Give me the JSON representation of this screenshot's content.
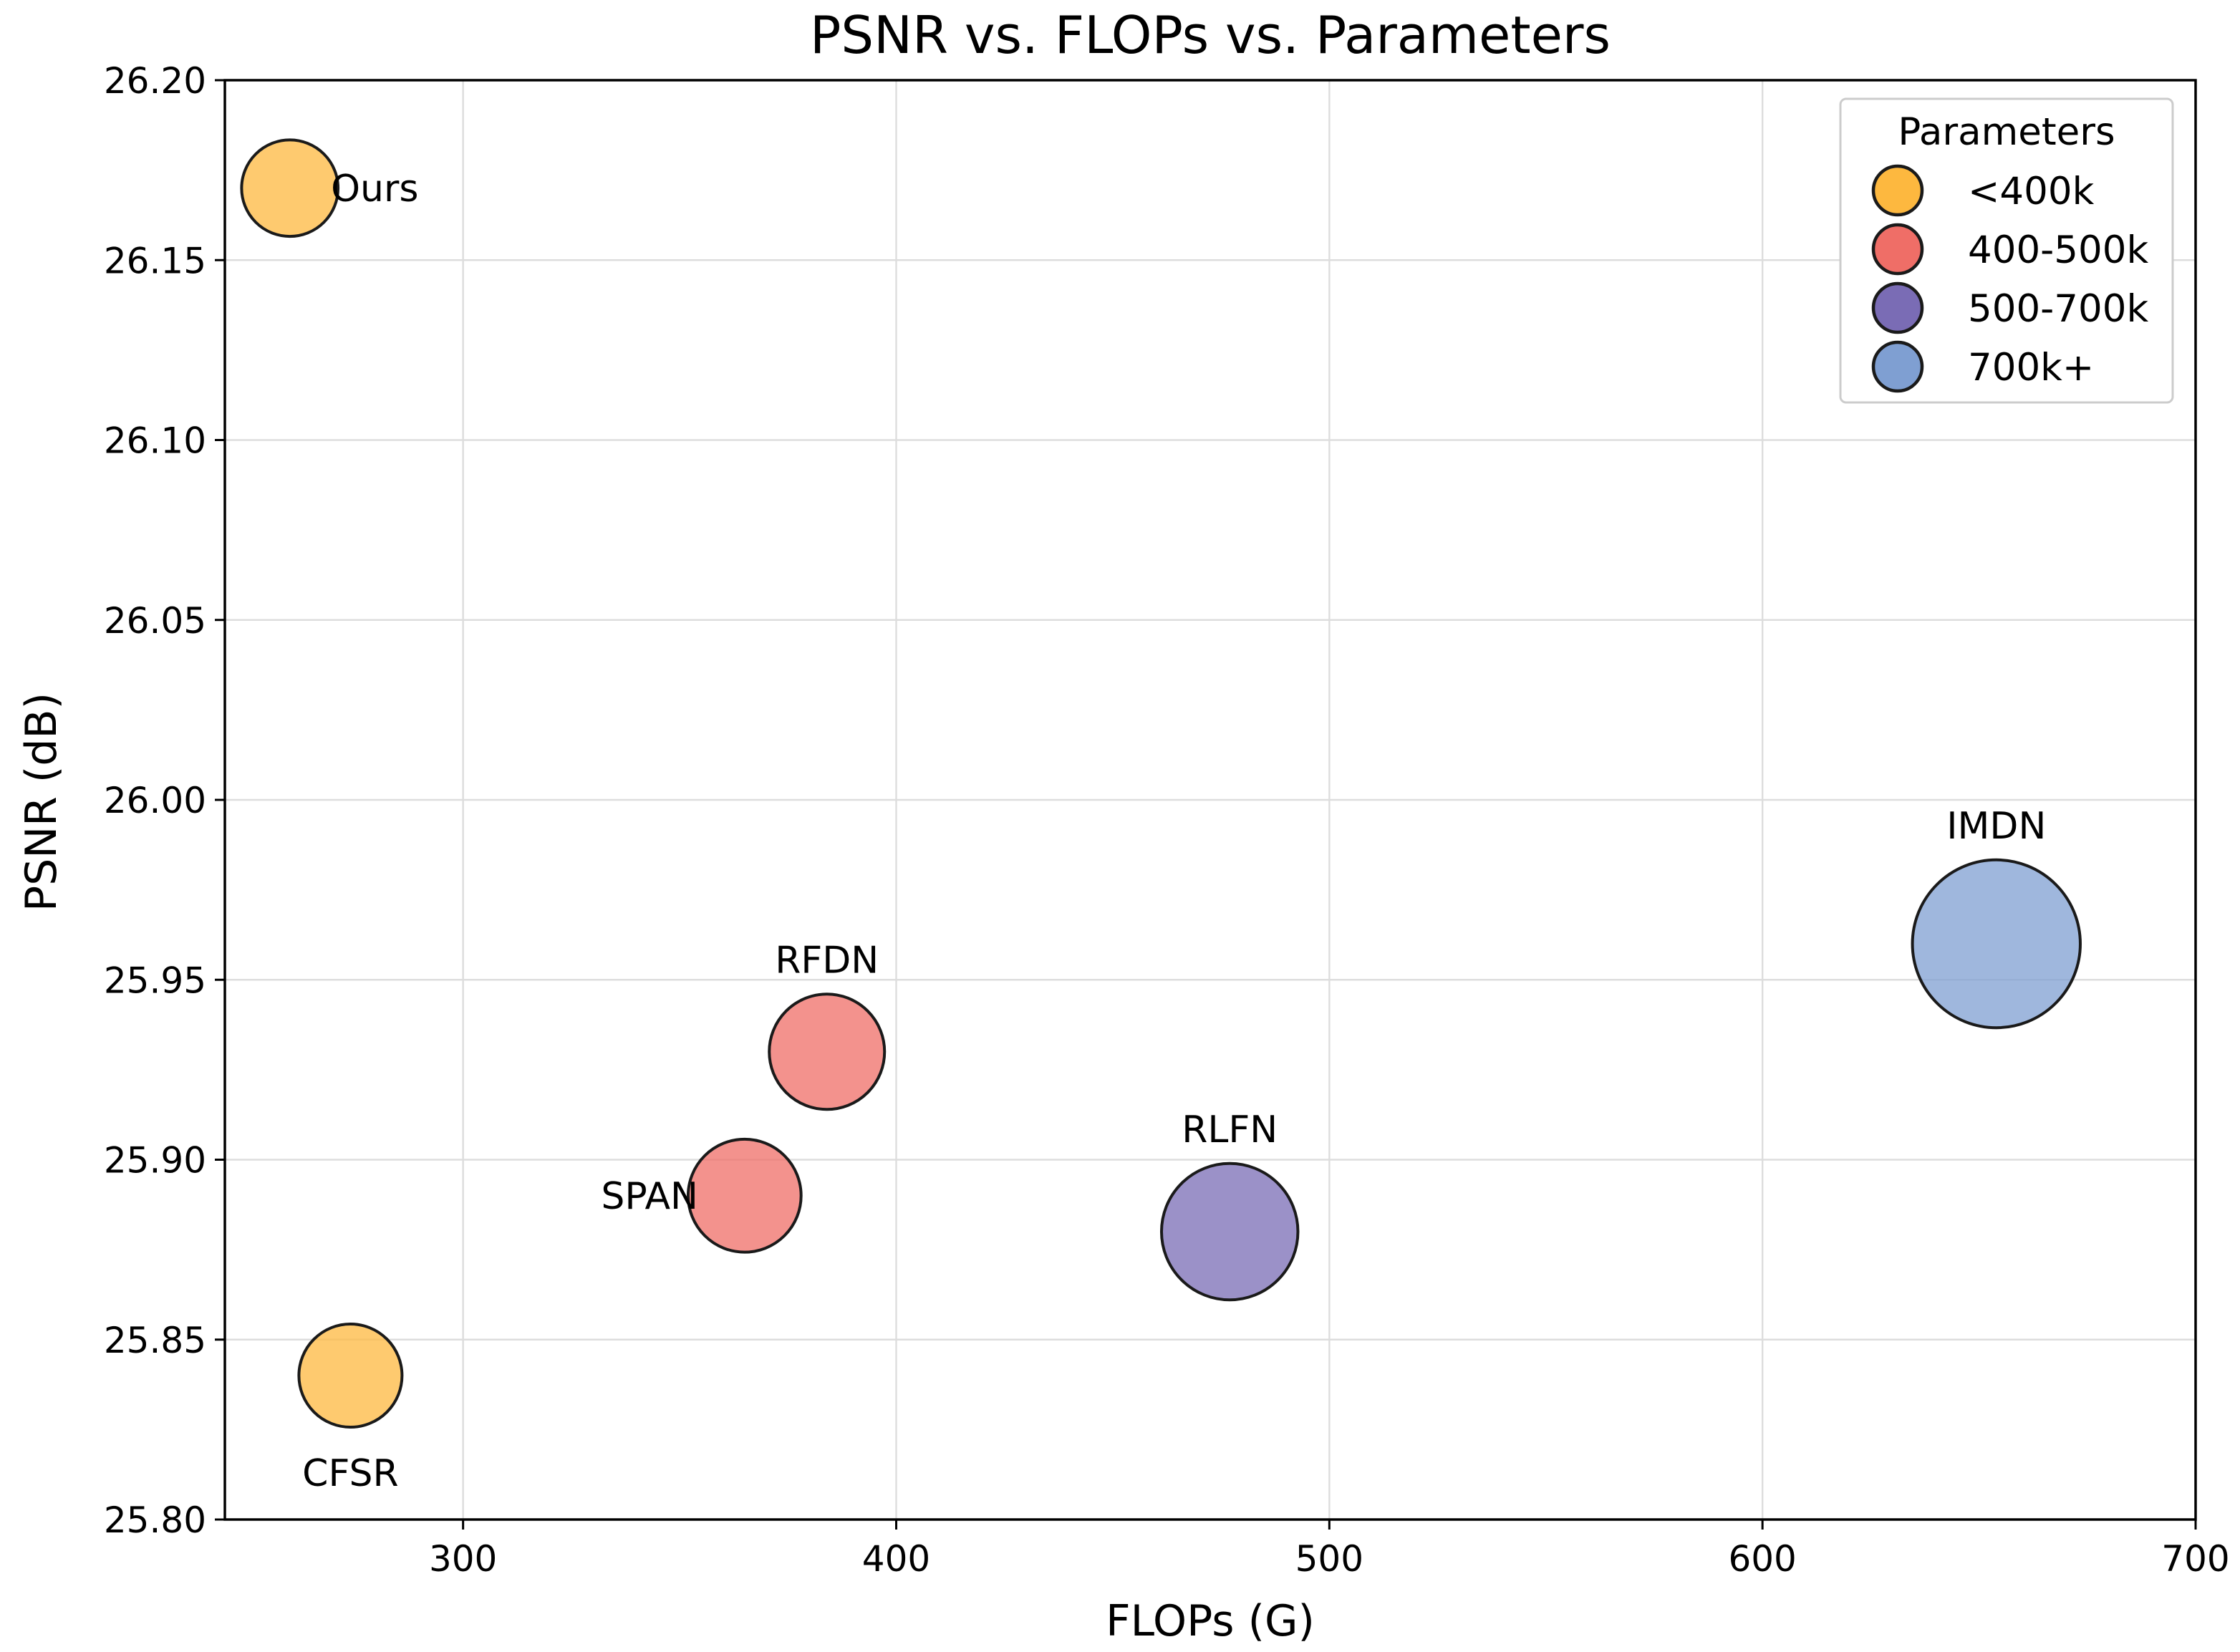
{
  "chart_data": {
    "type": "scatter",
    "title": "PSNR vs. FLOPs vs. Parameters",
    "xlabel": "FLOPs (G)",
    "ylabel": "PSNR (dB)",
    "xlim": [
      245,
      700
    ],
    "ylim": [
      25.8,
      26.2
    ],
    "xticks": [
      300,
      400,
      500,
      600,
      700
    ],
    "yticks": [
      25.8,
      25.85,
      25.9,
      25.95,
      26.0,
      26.05,
      26.1,
      26.15,
      26.2
    ],
    "grid": true,
    "marker_size_encodes": "Parameters (k)",
    "legend": {
      "title": "Parameters",
      "position": "top-right",
      "entries": [
        {
          "label": "<400k",
          "color": "#fdb83f"
        },
        {
          "label": "400-500k",
          "color": "#ef6e67"
        },
        {
          "label": "500-700k",
          "color": "#7a6cb5"
        },
        {
          "label": "700k+",
          "color": "#7f9fd2"
        }
      ]
    },
    "points": [
      {
        "name": "Ours",
        "flops": 260,
        "psnr": 26.17,
        "params": 350,
        "group": "<400k",
        "color": "#fdb83f",
        "label_side": "right"
      },
      {
        "name": "CFSR",
        "flops": 274,
        "psnr": 25.84,
        "params": 400,
        "group": "<400k",
        "color": "#fdb83f",
        "label_side": "below"
      },
      {
        "name": "SPAN",
        "flops": 365,
        "psnr": 25.89,
        "params": 480,
        "group": "400-500k",
        "color": "#ef6e67",
        "label_side": "left"
      },
      {
        "name": "RFDN",
        "flops": 384,
        "psnr": 25.93,
        "params": 500,
        "group": "400-500k",
        "color": "#ef6e67",
        "label_side": "above"
      },
      {
        "name": "RLFN",
        "flops": 477,
        "psnr": 25.88,
        "params": 700,
        "group": "500-700k",
        "color": "#7a6cb5",
        "label_side": "above"
      },
      {
        "name": "IMDN",
        "flops": 654,
        "psnr": 25.96,
        "params": 1060,
        "group": "700k+",
        "color": "#7f9fd2",
        "label_side": "above"
      }
    ]
  }
}
